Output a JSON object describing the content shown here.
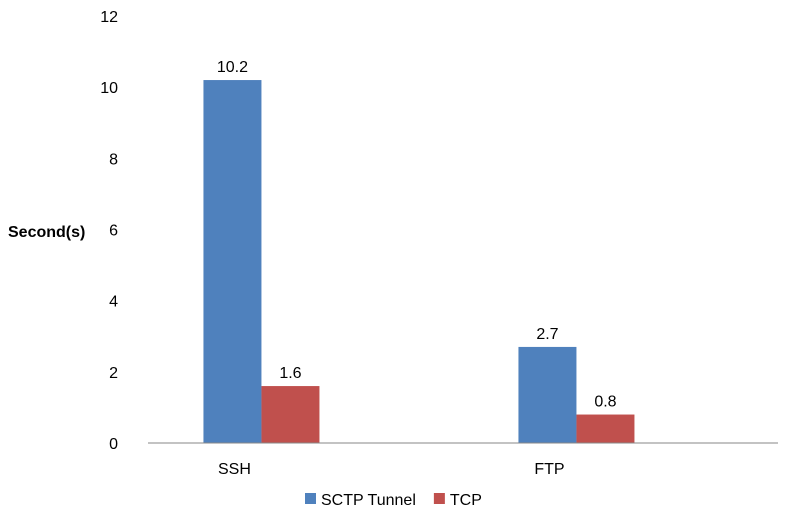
{
  "chart_data": {
    "type": "bar",
    "title": "",
    "xlabel": "",
    "ylabel": "Second(s)",
    "ylim": [
      0,
      12
    ],
    "yticks": [
      0,
      2,
      4,
      6,
      8,
      10,
      12
    ],
    "categories": [
      "SSH",
      "FTP"
    ],
    "series": [
      {
        "name": "SCTP Tunnel",
        "values": [
          10.2,
          2.7
        ],
        "labels": [
          "10.2",
          "2.7"
        ],
        "color": "#4F81BD"
      },
      {
        "name": "TCP",
        "values": [
          1.6,
          0.8
        ],
        "labels": [
          "1.6",
          "0.8"
        ],
        "color": "#C0504D"
      }
    ],
    "grid": false,
    "legend_position": "bottom"
  }
}
